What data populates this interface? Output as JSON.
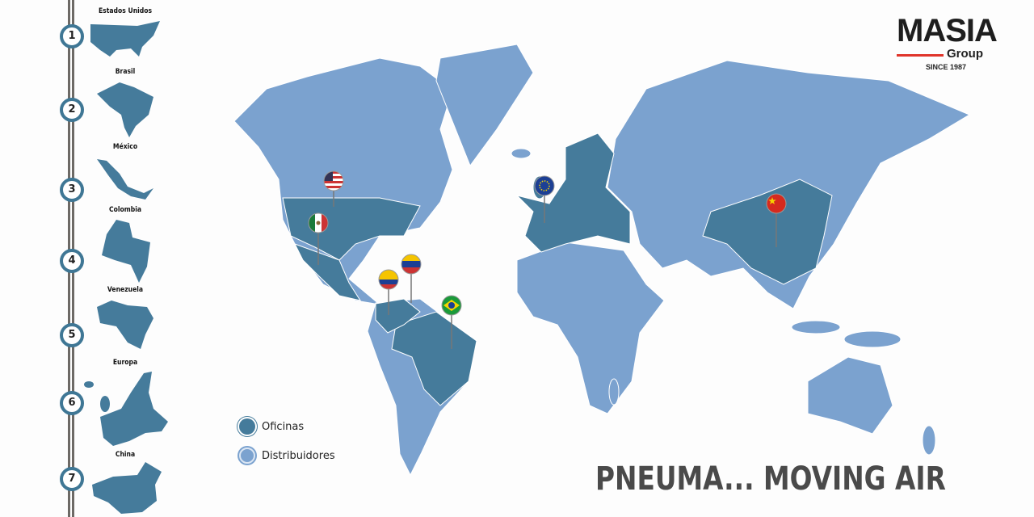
{
  "colors": {
    "offices": "#457b9b",
    "distributors": "#7ba2cf",
    "rail": "#6d6a66",
    "accent": "#e0352b"
  },
  "brand": {
    "name": "MASIA",
    "sub": "Group",
    "since": "SINCE 1987"
  },
  "offices": [
    {
      "number": "1",
      "name": "Estados Unidos",
      "flag": "us-flag"
    },
    {
      "number": "2",
      "name": "Brasil",
      "flag": "brazil-flag"
    },
    {
      "number": "3",
      "name": "México",
      "flag": "mexico-flag"
    },
    {
      "number": "4",
      "name": "Colombia",
      "flag": "colombia-flag"
    },
    {
      "number": "5",
      "name": "Venezuela",
      "flag": "venezuela-flag"
    },
    {
      "number": "6",
      "name": "Europa",
      "flag": "eu-flag"
    },
    {
      "number": "7",
      "name": "China",
      "flag": "china-flag"
    }
  ],
  "legend": {
    "offices": "Oficinas",
    "distributors": "Distribuidores"
  },
  "slogan": "PNEUMA... MOVING AIR"
}
